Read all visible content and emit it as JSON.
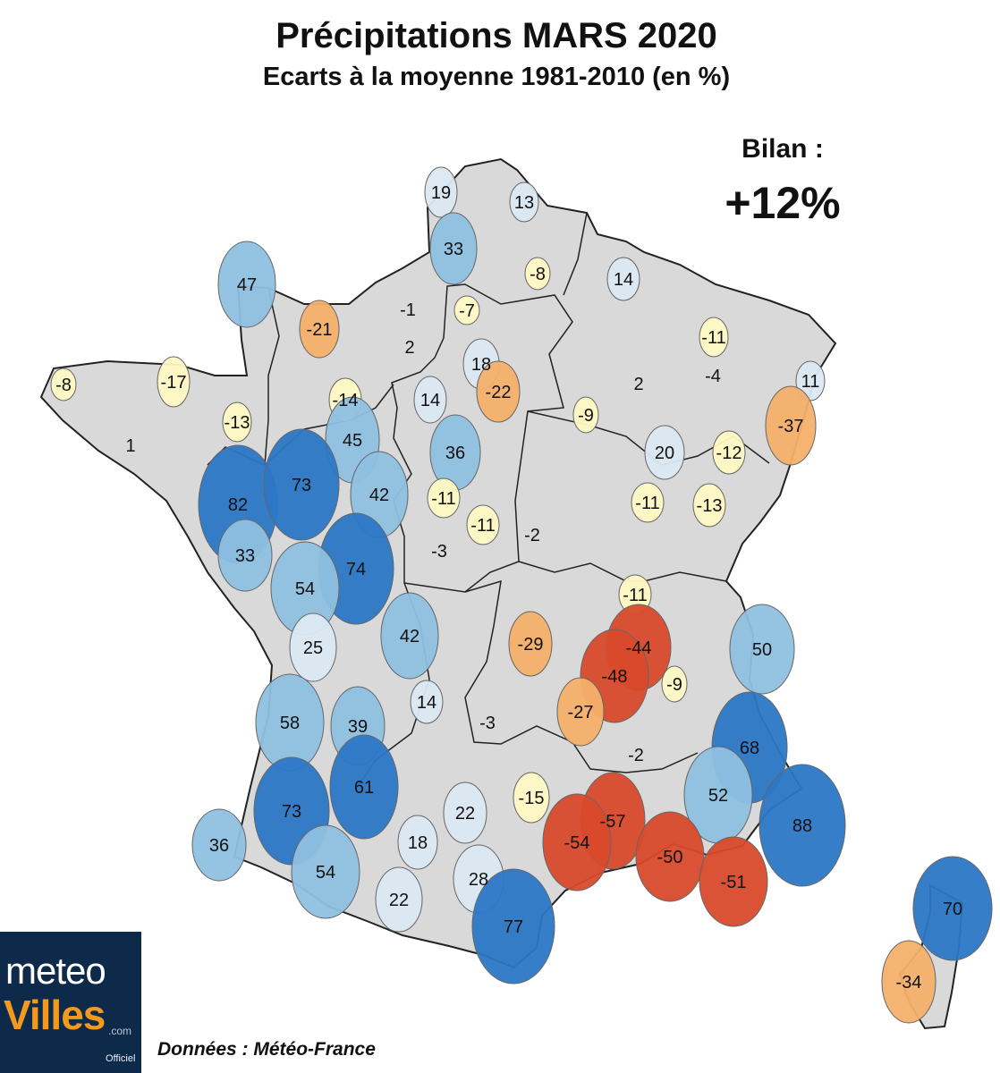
{
  "title": "Précipitations MARS 2020",
  "subtitle": "Ecarts à la moyenne 1981-2010 (en %)",
  "bilan": {
    "label": "Bilan :",
    "value": "+12%"
  },
  "source": "Données : Météo-France",
  "logo": {
    "line1": "meteo",
    "line2": "Villes",
    "suffix": ".com",
    "tag": "Officiel"
  },
  "colors": {
    "land": "#d9d9d9",
    "border": "#222222",
    "strong_negative": "#d84a2b",
    "negative": "#f5b06a",
    "slight_negative": "#fff9c4",
    "neutral": "#ffffff",
    "slight_positive": "#dbe9f2",
    "positive": "#8fc0e0",
    "strong_positive": "#2c77c6"
  },
  "stations": [
    {
      "value": "19"
    },
    {
      "value": "13"
    },
    {
      "value": "33"
    },
    {
      "value": "-8"
    },
    {
      "value": "14"
    },
    {
      "value": "47"
    },
    {
      "value": "-21"
    },
    {
      "value": "-1"
    },
    {
      "value": "-7"
    },
    {
      "value": "2"
    },
    {
      "value": "-11"
    },
    {
      "value": "18"
    },
    {
      "value": "-4"
    },
    {
      "value": "11"
    },
    {
      "value": "-8"
    },
    {
      "value": "-17"
    },
    {
      "value": "-14"
    },
    {
      "value": "14"
    },
    {
      "value": "-22"
    },
    {
      "value": "2"
    },
    {
      "value": "-9"
    },
    {
      "value": "-37"
    },
    {
      "value": "-13"
    },
    {
      "value": "45"
    },
    {
      "value": "36"
    },
    {
      "value": "20"
    },
    {
      "value": "-12"
    },
    {
      "value": "1"
    },
    {
      "value": "82"
    },
    {
      "value": "73"
    },
    {
      "value": "42"
    },
    {
      "value": "-11"
    },
    {
      "value": "-11"
    },
    {
      "value": "-13"
    },
    {
      "value": "-11"
    },
    {
      "value": "33"
    },
    {
      "value": "74"
    },
    {
      "value": "-3"
    },
    {
      "value": "-2"
    },
    {
      "value": "54"
    },
    {
      "value": "-11"
    },
    {
      "value": "25"
    },
    {
      "value": "42"
    },
    {
      "value": "-29"
    },
    {
      "value": "-44"
    },
    {
      "value": "50"
    },
    {
      "value": "-48"
    },
    {
      "value": "-9"
    },
    {
      "value": "14"
    },
    {
      "value": "58"
    },
    {
      "value": "39"
    },
    {
      "value": "-3"
    },
    {
      "value": "-27"
    },
    {
      "value": "68"
    },
    {
      "value": "-2"
    },
    {
      "value": "61"
    },
    {
      "value": "73"
    },
    {
      "value": "22"
    },
    {
      "value": "-15"
    },
    {
      "value": "52"
    },
    {
      "value": "-57"
    },
    {
      "value": "88"
    },
    {
      "value": "36"
    },
    {
      "value": "18"
    },
    {
      "value": "-54"
    },
    {
      "value": "54"
    },
    {
      "value": "-50"
    },
    {
      "value": "28"
    },
    {
      "value": "-51"
    },
    {
      "value": "22"
    },
    {
      "value": "70"
    },
    {
      "value": "77"
    },
    {
      "value": "-34"
    }
  ]
}
